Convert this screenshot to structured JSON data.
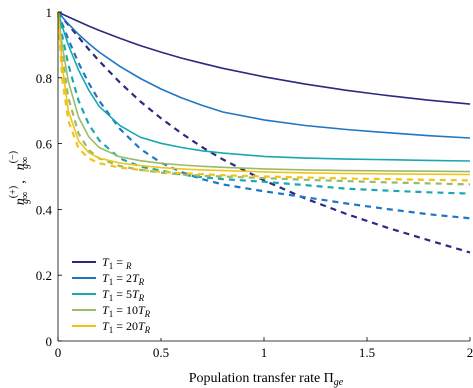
{
  "chart_data": {
    "type": "line",
    "xlabel": "Population transfer rate Π",
    "xlabel_sub": "ge",
    "ylabel_plus": "n",
    "ylabel_plus_sup": "(+)",
    "ylabel_plus_sub": "g∞",
    "ylabel_sep": ",",
    "ylabel_minus": "n",
    "ylabel_minus_sup": "(−)",
    "ylabel_minus_sub": "g∞",
    "xlim": [
      0,
      2
    ],
    "ylim": [
      0,
      1
    ],
    "xticks": [
      0,
      0.5,
      1,
      1.5,
      2
    ],
    "xtick_labels": [
      "0",
      "0.5",
      "1",
      "1.5",
      "2"
    ],
    "yticks": [
      0,
      0.2,
      0.4,
      0.6,
      0.8,
      1
    ],
    "ytick_labels": [
      "0",
      "0.2",
      "0.4",
      "0.6",
      "0.8",
      "1"
    ],
    "legend_position": "bottom-left",
    "x": [
      0,
      0.02,
      0.05,
      0.1,
      0.15,
      0.2,
      0.3,
      0.4,
      0.5,
      0.6,
      0.7,
      0.8,
      1.0,
      1.2,
      1.4,
      1.6,
      1.8,
      2.0
    ],
    "series": [
      {
        "name": "T1 = TR",
        "legend_main": "T",
        "legend_sub1": "1",
        "legend_eq": " = ",
        "legend_coef": "",
        "legend_sub2": "R",
        "color": "#2b2a7e",
        "solid": [
          1.0,
          0.994,
          0.985,
          0.971,
          0.957,
          0.944,
          0.92,
          0.898,
          0.878,
          0.86,
          0.844,
          0.829,
          0.803,
          0.781,
          0.762,
          0.746,
          0.732,
          0.72
        ],
        "dashed": [
          1.0,
          0.984,
          0.961,
          0.923,
          0.886,
          0.851,
          0.786,
          0.728,
          0.677,
          0.631,
          0.589,
          0.552,
          0.488,
          0.433,
          0.386,
          0.344,
          0.306,
          0.269
        ]
      },
      {
        "name": "T1 = 2TR",
        "legend_main": "T",
        "legend_sub1": "1",
        "legend_eq": " = 2",
        "legend_coef": "T",
        "legend_sub2": "R",
        "color": "#1f77c4",
        "solid": [
          1.0,
          0.985,
          0.964,
          0.932,
          0.904,
          0.878,
          0.835,
          0.798,
          0.766,
          0.739,
          0.716,
          0.696,
          0.672,
          0.655,
          0.643,
          0.633,
          0.624,
          0.617
        ],
        "dashed": [
          1.0,
          0.965,
          0.917,
          0.845,
          0.783,
          0.73,
          0.645,
          0.584,
          0.542,
          0.513,
          0.492,
          0.476,
          0.455,
          0.437,
          0.418,
          0.401,
          0.385,
          0.373
        ]
      },
      {
        "name": "T1 = 5TR",
        "legend_main": "T",
        "legend_sub1": "1",
        "legend_eq": " = 5",
        "legend_coef": "T",
        "legend_sub2": "R",
        "color": "#1aa8b0",
        "solid": [
          1.0,
          0.957,
          0.9,
          0.823,
          0.762,
          0.713,
          0.655,
          0.619,
          0.601,
          0.588,
          0.578,
          0.571,
          0.561,
          0.556,
          0.553,
          0.551,
          0.549,
          0.547
        ],
        "dashed": [
          1.0,
          0.93,
          0.84,
          0.73,
          0.658,
          0.61,
          0.555,
          0.53,
          0.518,
          0.506,
          0.498,
          0.492,
          0.484,
          0.474,
          0.463,
          0.457,
          0.452,
          0.448
        ]
      },
      {
        "name": "T1 = 10TR",
        "legend_main": "T",
        "legend_sub1": "1",
        "legend_eq": " = 10",
        "legend_coef": "T",
        "legend_sub2": "R",
        "color": "#9bba6a",
        "solid": [
          1.0,
          0.9,
          0.79,
          0.68,
          0.62,
          0.588,
          0.56,
          0.548,
          0.54,
          0.535,
          0.531,
          0.528,
          0.523,
          0.52,
          0.518,
          0.517,
          0.516,
          0.515
        ],
        "dashed": [
          1.0,
          0.87,
          0.74,
          0.63,
          0.58,
          0.555,
          0.532,
          0.52,
          0.512,
          0.506,
          0.502,
          0.5,
          0.495,
          0.49,
          0.486,
          0.482,
          0.479,
          0.476
        ]
      },
      {
        "name": "T1 = 20TR",
        "legend_main": "T",
        "legend_sub1": "1",
        "legend_eq": " = 20",
        "legend_coef": "T",
        "legend_sub2": "R",
        "color": "#f0c419",
        "solid": [
          1.0,
          0.84,
          0.7,
          0.608,
          0.572,
          0.556,
          0.541,
          0.533,
          0.527,
          0.523,
          0.52,
          0.518,
          0.514,
          0.511,
          0.509,
          0.508,
          0.507,
          0.506
        ],
        "dashed": [
          1.0,
          0.8,
          0.67,
          0.585,
          0.555,
          0.54,
          0.527,
          0.52,
          0.514,
          0.51,
          0.507,
          0.504,
          0.5,
          0.497,
          0.494,
          0.492,
          0.49,
          0.488
        ]
      }
    ]
  }
}
